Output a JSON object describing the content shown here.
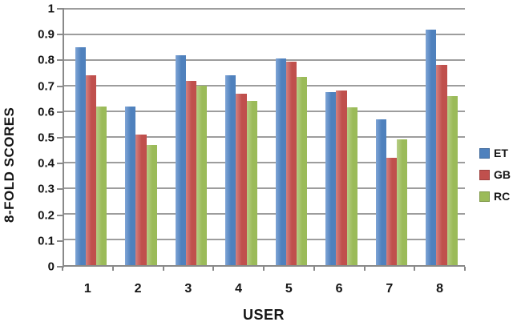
{
  "chart_data": {
    "type": "bar",
    "title": "",
    "xlabel": "USER",
    "ylabel": "8-FOLD SCORES",
    "categories": [
      "1",
      "2",
      "3",
      "4",
      "5",
      "6",
      "7",
      "8"
    ],
    "series": [
      {
        "name": "ET",
        "color": "#4F81BD",
        "color_light": "#7FA5D6",
        "values": [
          0.85,
          0.62,
          0.82,
          0.74,
          0.805,
          0.675,
          0.57,
          0.92
        ]
      },
      {
        "name": "GB",
        "color": "#C0504D",
        "color_light": "#D4817F",
        "values": [
          0.74,
          0.51,
          0.72,
          0.67,
          0.795,
          0.68,
          0.42,
          0.78
        ]
      },
      {
        "name": "RC",
        "color": "#9BBB59",
        "color_light": "#B7CD85",
        "values": [
          0.62,
          0.47,
          0.7,
          0.64,
          0.735,
          0.615,
          0.49,
          0.66
        ]
      }
    ],
    "ylim": [
      0,
      1
    ],
    "ytick_step": 0.1,
    "ytick_labels": [
      "0",
      "0.1",
      "0.2",
      "0.3",
      "0.4",
      "0.5",
      "0.6",
      "0.7",
      "0.8",
      "0.9",
      "1"
    ],
    "grid": true,
    "legend_position": "right-center",
    "axis_color": "#898989",
    "grid_color": "#9d9d9d",
    "text_color": "#151515"
  }
}
